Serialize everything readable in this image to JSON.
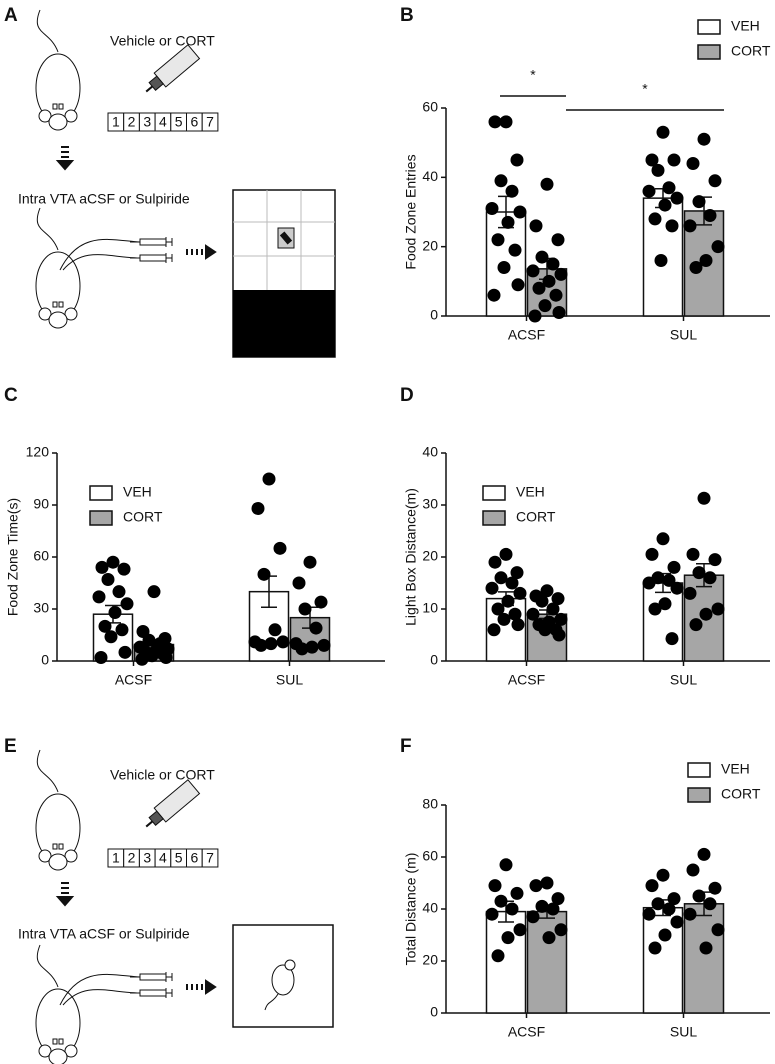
{
  "schematics": {
    "A": {
      "panel_label": "A",
      "treatment": "Vehicle or CORT",
      "days": [
        "1",
        "2",
        "3",
        "4",
        "5",
        "6",
        "7"
      ],
      "infusion": "Intra VTA aCSF or Sulpiride"
    },
    "E": {
      "panel_label": "E",
      "treatment": "Vehicle or CORT",
      "days": [
        "1",
        "2",
        "3",
        "4",
        "5",
        "6",
        "7"
      ],
      "infusion": "Intra VTA aCSF or Sulpiride"
    }
  },
  "chart_data": [
    {
      "type": "bar",
      "panel_label": "B",
      "ylabel": "Food Zone Entries",
      "categories": [
        "ACSF",
        "SUL"
      ],
      "ylim": [
        0,
        60
      ],
      "yticks": [
        0,
        20,
        40,
        60
      ],
      "annotations": [
        "*",
        "*"
      ],
      "series": [
        {
          "name": "VEH",
          "color": "#ffffff",
          "values": [
            30,
            34
          ],
          "sem": [
            4.5,
            2.7
          ],
          "points": [
            [
              56,
              56,
              45,
              39,
              36,
              31,
              30,
              27,
              22,
              19,
              14,
              9,
              6
            ],
            [
              53,
              45,
              45,
              42,
              37,
              36,
              34,
              32,
              28,
              26,
              16
            ]
          ]
        },
        {
          "name": "CORT",
          "color": "#a6a6a6",
          "values": [
            13.6,
            30.3
          ],
          "sem": [
            3,
            4
          ],
          "points": [
            [
              38,
              26,
              22,
              17,
              15,
              13,
              12,
              10,
              8,
              6,
              3,
              1,
              0
            ],
            [
              51,
              44,
              39,
              33,
              29,
              26,
              20,
              16,
              14
            ]
          ]
        }
      ]
    },
    {
      "type": "bar",
      "panel_label": "C",
      "ylabel": "Food Zone Time(s)",
      "categories": [
        "ACSF",
        "SUL"
      ],
      "ylim": [
        0,
        120
      ],
      "yticks": [
        0,
        30,
        60,
        90,
        120
      ],
      "series": [
        {
          "name": "VEH",
          "color": "#ffffff",
          "values": [
            27,
            40
          ],
          "sem": [
            5,
            9
          ],
          "points": [
            [
              57,
              54,
              53,
              47,
              40,
              37,
              33,
              28,
              20,
              18,
              14,
              5,
              2
            ],
            [
              105,
              88,
              65,
              50,
              18,
              11,
              11,
              10,
              9
            ]
          ]
        },
        {
          "name": "CORT",
          "color": "#a6a6a6",
          "values": [
            9.5,
            25
          ],
          "sem": [
            2,
            6
          ],
          "points": [
            [
              40,
              17,
              13,
              12,
              10,
              8,
              7,
              6,
              5,
              4,
              3,
              2,
              1
            ],
            [
              57,
              45,
              34,
              30,
              19,
              10,
              9,
              8,
              7
            ]
          ]
        }
      ]
    },
    {
      "type": "bar",
      "panel_label": "D",
      "ylabel": "Light Box Distance(m)",
      "categories": [
        "ACSF",
        "SUL"
      ],
      "ylim": [
        0,
        40
      ],
      "yticks": [
        0,
        10,
        20,
        30,
        40
      ],
      "series": [
        {
          "name": "VEH",
          "color": "#ffffff",
          "values": [
            12,
            15
          ],
          "sem": [
            1.3,
            1.8
          ],
          "points": [
            [
              20.5,
              19,
              17,
              16,
              15,
              14,
              13,
              11.5,
              10,
              9,
              8,
              7,
              6
            ],
            [
              23.5,
              20.5,
              18,
              16,
              15.5,
              15,
              14,
              11,
              10,
              4.3
            ]
          ]
        },
        {
          "name": "CORT",
          "color": "#a6a6a6",
          "values": [
            9,
            16.5
          ],
          "sem": [
            0.8,
            2.2
          ],
          "points": [
            [
              13.5,
              12.5,
              12,
              11.5,
              10,
              9,
              8,
              7.5,
              7,
              6,
              6,
              5
            ],
            [
              31.3,
              20.5,
              19.5,
              17,
              16,
              13,
              10,
              9,
              7
            ]
          ]
        }
      ]
    },
    {
      "type": "bar",
      "panel_label": "F",
      "ylabel": "Total Distance (m)",
      "categories": [
        "ACSF",
        "SUL"
      ],
      "ylim": [
        0,
        80
      ],
      "yticks": [
        0,
        20,
        40,
        60,
        80
      ],
      "series": [
        {
          "name": "VEH",
          "color": "#ffffff",
          "values": [
            39,
            40.5
          ],
          "sem": [
            4,
            3
          ],
          "points": [
            [
              57,
              49,
              46,
              43,
              40,
              38,
              32,
              29,
              22
            ],
            [
              53,
              49,
              44,
              42,
              40,
              38,
              35,
              30,
              25
            ]
          ]
        },
        {
          "name": "CORT",
          "color": "#a6a6a6",
          "values": [
            39,
            42
          ],
          "sem": [
            2.5,
            4.5
          ],
          "points": [
            [
              50,
              49,
              44,
              41,
              40,
              37,
              32,
              29
            ],
            [
              61,
              55,
              48,
              45,
              42,
              38,
              32,
              25
            ]
          ]
        }
      ]
    }
  ]
}
